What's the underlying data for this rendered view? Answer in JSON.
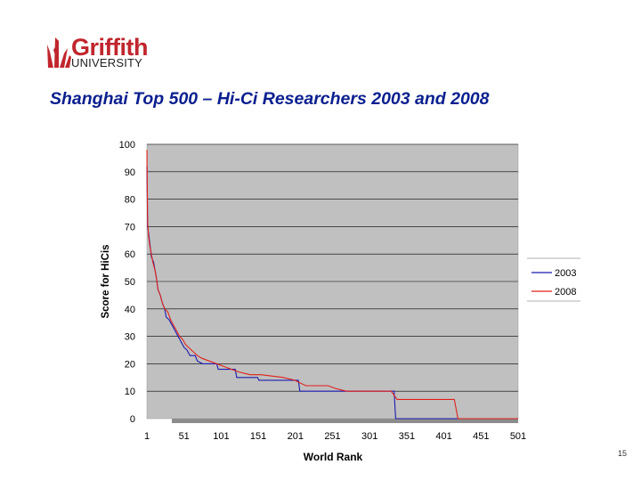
{
  "logo": {
    "name": "Griffith",
    "sub": "UNIVERSITY"
  },
  "slide_title": "Shanghai Top 500 – Hi-Ci Researchers 2003 and 2008",
  "page_number": "15",
  "colors": {
    "title": "#0a1f8f",
    "plot_bg": "#c0c0c0",
    "s2003": "#1b1bb0",
    "s2008": "#e0201a",
    "brand": "#c0262d"
  },
  "chart_data": {
    "type": "line",
    "xlabel": "World Rank",
    "ylabel": "Score for HiCis",
    "xlim": [
      1,
      501
    ],
    "ylim": [
      0,
      100
    ],
    "x_ticks": [
      1,
      51,
      101,
      151,
      201,
      251,
      301,
      351,
      401,
      451,
      501
    ],
    "y_ticks": [
      0,
      10,
      20,
      30,
      40,
      50,
      60,
      70,
      80,
      90,
      100
    ],
    "grid": "horizontal",
    "legend": "right",
    "series": [
      {
        "name": "2003",
        "color": "#1b1bb0",
        "points": [
          [
            1,
            92
          ],
          [
            2,
            70
          ],
          [
            3,
            68
          ],
          [
            5,
            64
          ],
          [
            7,
            59
          ],
          [
            10,
            57
          ],
          [
            12,
            54
          ],
          [
            14,
            51
          ],
          [
            16,
            47
          ],
          [
            19,
            45
          ],
          [
            22,
            42
          ],
          [
            25,
            40
          ],
          [
            27,
            37
          ],
          [
            31,
            36
          ],
          [
            35,
            34
          ],
          [
            39,
            32
          ],
          [
            43,
            30
          ],
          [
            47,
            28
          ],
          [
            51,
            26
          ],
          [
            55,
            25
          ],
          [
            59,
            23
          ],
          [
            66,
            23
          ],
          [
            69,
            21
          ],
          [
            76,
            20
          ],
          [
            95,
            20
          ],
          [
            97,
            18
          ],
          [
            120,
            18
          ],
          [
            122,
            15
          ],
          [
            150,
            15
          ],
          [
            152,
            14
          ],
          [
            165,
            14
          ],
          [
            205,
            14
          ],
          [
            207,
            10
          ],
          [
            275,
            10
          ],
          [
            277,
            10
          ],
          [
            334,
            10
          ],
          [
            336,
            0
          ],
          [
            501,
            0
          ]
        ]
      },
      {
        "name": "2008",
        "color": "#e0201a",
        "points": [
          [
            1,
            98
          ],
          [
            2,
            72
          ],
          [
            3,
            67
          ],
          [
            5,
            63
          ],
          [
            7,
            60
          ],
          [
            9,
            57
          ],
          [
            12,
            54
          ],
          [
            14,
            51
          ],
          [
            16,
            47
          ],
          [
            19,
            45
          ],
          [
            22,
            42
          ],
          [
            25,
            40
          ],
          [
            29,
            39
          ],
          [
            33,
            36
          ],
          [
            37,
            34
          ],
          [
            41,
            32
          ],
          [
            45,
            30
          ],
          [
            49,
            29
          ],
          [
            53,
            27
          ],
          [
            57,
            26
          ],
          [
            61,
            25
          ],
          [
            65,
            24
          ],
          [
            69,
            23
          ],
          [
            75,
            22
          ],
          [
            85,
            21
          ],
          [
            95,
            20
          ],
          [
            105,
            19
          ],
          [
            115,
            18
          ],
          [
            125,
            17
          ],
          [
            140,
            16
          ],
          [
            155,
            16
          ],
          [
            185,
            15
          ],
          [
            200,
            14
          ],
          [
            215,
            12
          ],
          [
            245,
            12
          ],
          [
            255,
            11
          ],
          [
            270,
            10
          ],
          [
            315,
            10
          ],
          [
            330,
            10
          ],
          [
            338,
            7
          ],
          [
            415,
            7
          ],
          [
            420,
            0
          ],
          [
            501,
            0
          ]
        ]
      }
    ]
  }
}
